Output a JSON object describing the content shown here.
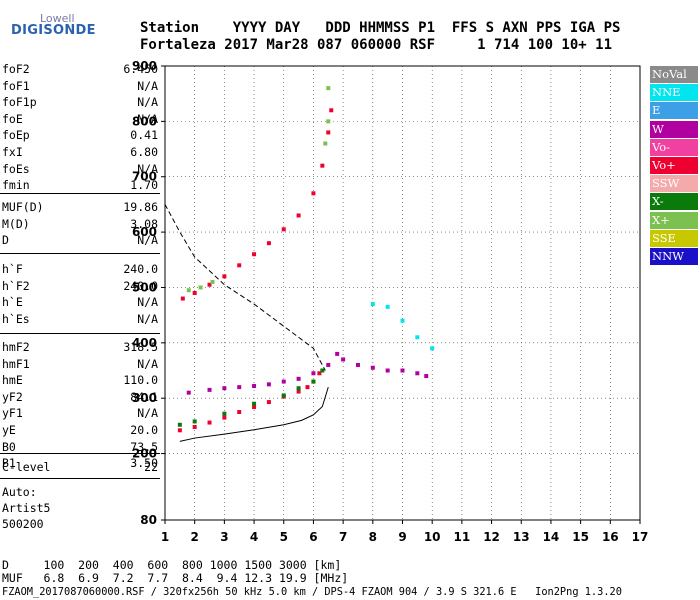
{
  "logo": {
    "line1": "Lowell",
    "line2": "DIGISONDE"
  },
  "header": {
    "line1": "Station    YYYY DAY   DDD HHMMSS P1  FFS S AXN PPS IGA PS",
    "line2": "Fortaleza 2017 Mar28 087 060000 RSF     1 714 100 10+ 11"
  },
  "params_group1": [
    {
      "label": "foF2",
      "value": "6.450"
    },
    {
      "label": "foF1",
      "value": "N/A"
    },
    {
      "label": "foF1p",
      "value": "N/A"
    },
    {
      "label": "foE",
      "value": "N/A"
    },
    {
      "label": "foEp",
      "value": "0.41"
    },
    {
      "label": "fxI",
      "value": "6.80"
    },
    {
      "label": "foEs",
      "value": "N/A"
    },
    {
      "label": "fmin",
      "value": "1.70"
    }
  ],
  "params_group2": [
    {
      "label": "MUF(D)",
      "value": "19.86"
    },
    {
      "label": "M(D)",
      "value": "3.08"
    },
    {
      "label": "D",
      "value": "N/A"
    }
  ],
  "params_group3": [
    {
      "label": "h`F",
      "value": "240.0"
    },
    {
      "label": "h`F2",
      "value": "240.0"
    },
    {
      "label": "h`E",
      "value": "N/A"
    },
    {
      "label": "h`Es",
      "value": "N/A"
    }
  ],
  "params_group4": [
    {
      "label": "hmF2",
      "value": "318.5"
    },
    {
      "label": "hmF1",
      "value": "N/A"
    },
    {
      "label": "hmE",
      "value": "110.0"
    },
    {
      "label": "yF2",
      "value": "84.1"
    },
    {
      "label": "yF1",
      "value": "N/A"
    },
    {
      "label": "yE",
      "value": "20.0"
    },
    {
      "label": "B0",
      "value": "73.5"
    },
    {
      "label": "B1",
      "value": "3.50"
    }
  ],
  "params_group5": [
    {
      "label": "C-level",
      "value": "22"
    }
  ],
  "autoscale": {
    "line1": "Auto:",
    "line2": "Artist5",
    "line3": "500200"
  },
  "legend": [
    {
      "label": "NoVal",
      "bg": "#8a8a8a",
      "fg": "#ffffff"
    },
    {
      "label": "NNE",
      "bg": "#00e5ee",
      "fg": "#ffffff"
    },
    {
      "label": "E",
      "bg": "#3da0e6",
      "fg": "#ffffff"
    },
    {
      "label": "W",
      "bg": "#b000a0",
      "fg": "#ffffff"
    },
    {
      "label": "Vo-",
      "bg": "#f040a0",
      "fg": "#ffffff"
    },
    {
      "label": "Vo+",
      "bg": "#ee0030",
      "fg": "#ffffff"
    },
    {
      "label": "SSW",
      "bg": "#f4aaaa",
      "fg": "#ffffff"
    },
    {
      "label": "X-",
      "bg": "#0a7a0a",
      "fg": "#ffffff"
    },
    {
      "label": "X+",
      "bg": "#7cc050",
      "fg": "#ffffff"
    },
    {
      "label": "SSE",
      "bg": "#c8c800",
      "fg": "#ffffff"
    },
    {
      "label": "NNW",
      "bg": "#1a10c8",
      "fg": "#ffffff"
    }
  ],
  "footer": {
    "line1": "D     100  200  400  600  800 1000 1500 3000 [km]",
    "line2": "MUF   6.8  6.9  7.2  7.7  8.4  9.4 12.3 19.9 [MHz]",
    "line3": "FZAOM_2017087060000.RSF / 320fx256h 50 kHz 5.0 km / DPS-4 FZAOM 904 / 3.9 S 321.6 E   Ion2Png 1.3.20"
  },
  "chart_data": {
    "type": "scatter",
    "title": "",
    "xlabel": "",
    "ylabel": "",
    "xlim": [
      1,
      17
    ],
    "ylim": [
      80,
      900
    ],
    "xticks": [
      1,
      2,
      3,
      4,
      5,
      6,
      7,
      8,
      9,
      10,
      11,
      12,
      13,
      14,
      15,
      16,
      17
    ],
    "yticks": [
      80,
      200,
      300,
      400,
      500,
      600,
      700,
      800,
      900
    ],
    "series": [
      {
        "name": "Vo+",
        "color": "#ee0030",
        "x": [
          1.5,
          2.0,
          2.5,
          3.0,
          3.5,
          4.0,
          4.5,
          5.0,
          5.5,
          5.8,
          6.0,
          6.2
        ],
        "y": [
          242,
          248,
          256,
          265,
          275,
          284,
          293,
          303,
          312,
          320,
          330,
          345
        ]
      },
      {
        "name": "X-",
        "color": "#0a7a0a",
        "x": [
          1.5,
          2.0,
          3.0,
          4.0,
          5.0,
          5.5,
          6.0,
          6.3
        ],
        "y": [
          252,
          258,
          272,
          290,
          305,
          318,
          330,
          350
        ]
      },
      {
        "name": "Vo+",
        "color": "#ee0030",
        "x": [
          1.6,
          2.0,
          2.5,
          3.0,
          3.5,
          4.0,
          4.5,
          5.0,
          5.5,
          6.0,
          6.3,
          6.5,
          6.6
        ],
        "y": [
          480,
          490,
          505,
          520,
          540,
          560,
          580,
          605,
          630,
          670,
          720,
          780,
          820
        ]
      },
      {
        "name": "X+",
        "color": "#7cc050",
        "x": [
          1.8,
          2.2,
          2.6,
          6.4,
          6.5,
          6.5
        ],
        "y": [
          495,
          500,
          510,
          760,
          800,
          860
        ]
      },
      {
        "name": "W",
        "color": "#b000a0",
        "x": [
          1.8,
          2.5,
          3.0,
          3.5,
          4.0,
          4.5,
          5.0,
          5.5,
          6.0,
          6.5,
          6.8,
          7.0,
          7.5,
          8.0,
          8.5,
          9.0,
          9.5,
          9.8
        ],
        "y": [
          310,
          315,
          318,
          320,
          322,
          325,
          330,
          335,
          345,
          360,
          380,
          370,
          360,
          355,
          350,
          350,
          345,
          340
        ]
      },
      {
        "name": "NNE",
        "color": "#00e5ee",
        "x": [
          8.0,
          8.5,
          9.0,
          9.5,
          10.0
        ],
        "y": [
          470,
          465,
          440,
          410,
          390
        ]
      }
    ],
    "dashed_curve": {
      "x": [
        1.0,
        1.5,
        2.0,
        3.0,
        4.0,
        5.0,
        6.0,
        6.4
      ],
      "y": [
        650,
        600,
        555,
        505,
        470,
        430,
        390,
        350
      ]
    },
    "solid_curve": {
      "x": [
        1.5,
        2.0,
        3.0,
        4.0,
        5.0,
        5.6,
        6.0,
        6.3,
        6.5
      ],
      "y": [
        222,
        228,
        235,
        243,
        252,
        260,
        270,
        285,
        320
      ]
    }
  }
}
